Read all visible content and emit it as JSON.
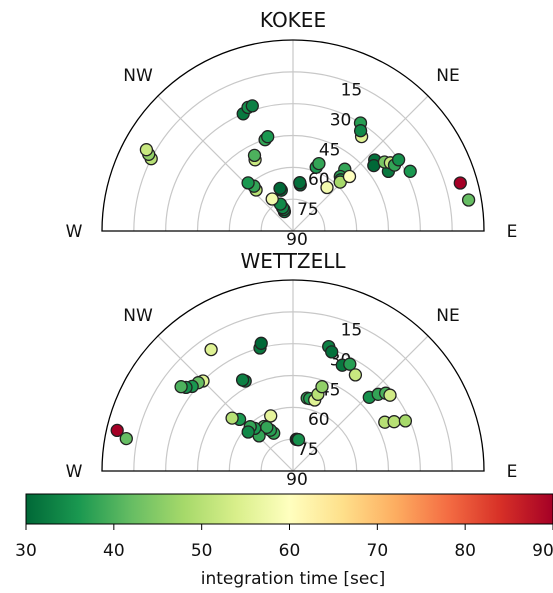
{
  "chart_data": [
    {
      "type": "scatter",
      "projection": "polar-half",
      "title": "KOKEE",
      "theta_range_deg": [
        -90,
        90
      ],
      "r_range": [
        0,
        90
      ],
      "grid": true,
      "radial_ticks": [
        "15",
        "30",
        "45",
        "60",
        "75",
        "90"
      ],
      "direction_labels": {
        "w": "W",
        "nw": "NW",
        "ne": "NE",
        "e": "E"
      },
      "points": [
        {
          "azimuth": -24,
          "elevation": 80,
          "value": 33
        },
        {
          "azimuth": -23,
          "elevation": 79,
          "value": 33
        },
        {
          "azimuth": -24,
          "elevation": 78,
          "value": 34
        },
        {
          "azimuth": -25,
          "elevation": 76,
          "value": 34
        },
        {
          "azimuth": -33,
          "elevation": 72,
          "value": 58
        },
        {
          "azimuth": -16,
          "elevation": 70,
          "value": 31
        },
        {
          "azimuth": -17,
          "elevation": 69,
          "value": 30
        },
        {
          "azimuth": 9,
          "elevation": 68,
          "value": 30
        },
        {
          "azimuth": 8,
          "elevation": 67,
          "value": 31
        },
        {
          "azimuth": 20,
          "elevation": 58,
          "value": 36
        },
        {
          "azimuth": 21,
          "elevation": 56,
          "value": 38
        },
        {
          "azimuth": -42,
          "elevation": 64,
          "value": 50
        },
        {
          "azimuth": -41,
          "elevation": 62,
          "value": 38
        },
        {
          "azimuth": -43,
          "elevation": 59,
          "value": 36
        },
        {
          "azimuth": -28,
          "elevation": 52,
          "value": 52
        },
        {
          "azimuth": -27,
          "elevation": 50,
          "value": 40
        },
        {
          "azimuth": -17,
          "elevation": 45,
          "value": 38
        },
        {
          "azimuth": -15,
          "elevation": 44,
          "value": 36
        },
        {
          "azimuth": -23,
          "elevation": 30,
          "value": 32
        },
        {
          "azimuth": -20,
          "elevation": 28,
          "value": 35
        },
        {
          "azimuth": -18,
          "elevation": 28,
          "value": 33
        },
        {
          "azimuth": 38,
          "elevation": 64,
          "value": 58
        },
        {
          "azimuth": 36,
          "elevation": 35,
          "value": 55
        },
        {
          "azimuth": 32,
          "elevation": 30,
          "value": 37
        },
        {
          "azimuth": 34,
          "elevation": 33,
          "value": 34
        },
        {
          "azimuth": 40,
          "elevation": 52,
          "value": 38
        },
        {
          "azimuth": 41,
          "elevation": 56,
          "value": 37
        },
        {
          "azimuth": 43,
          "elevation": 57,
          "value": 35
        },
        {
          "azimuth": 44,
          "elevation": 58,
          "value": 48
        },
        {
          "azimuth": 46,
          "elevation": 53,
          "value": 60
        },
        {
          "azimuth": 49,
          "elevation": 39,
          "value": 31
        },
        {
          "azimuth": 51,
          "elevation": 41,
          "value": 30
        },
        {
          "azimuth": 58,
          "elevation": 37,
          "value": 32
        },
        {
          "azimuth": 53,
          "elevation": 36,
          "value": 44
        },
        {
          "azimuth": 55,
          "elevation": 34,
          "value": 52
        },
        {
          "azimuth": 57,
          "elevation": 33,
          "value": 38
        },
        {
          "azimuth": 56,
          "elevation": 30,
          "value": 35
        },
        {
          "azimuth": 63,
          "elevation": 28,
          "value": 36
        },
        {
          "azimuth": -63,
          "elevation": 15,
          "value": 50
        },
        {
          "azimuth": -62,
          "elevation": 13,
          "value": 46
        },
        {
          "azimuth": -61,
          "elevation": 11,
          "value": 52
        },
        {
          "azimuth": 74,
          "elevation": 8,
          "value": 90
        },
        {
          "azimuth": 80,
          "elevation": 6,
          "value": 42
        }
      ]
    },
    {
      "type": "scatter",
      "projection": "polar-half",
      "title": "WETTZELL",
      "theta_range_deg": [
        -90,
        90
      ],
      "r_range": [
        0,
        90
      ],
      "grid": true,
      "radial_ticks": [
        "15",
        "30",
        "45",
        "60",
        "75",
        "90"
      ],
      "direction_labels": {
        "w": "W",
        "nw": "NW",
        "ne": "NE",
        "e": "E"
      },
      "points": [
        {
          "azimuth": 6,
          "elevation": 75,
          "value": 36
        },
        {
          "azimuth": 8,
          "elevation": 75,
          "value": 37
        },
        {
          "azimuth": 10,
          "elevation": 75,
          "value": 35
        },
        {
          "azimuth": -33,
          "elevation": 65,
          "value": 40
        },
        {
          "azimuth": -27,
          "elevation": 70,
          "value": 38
        },
        {
          "azimuth": -29,
          "elevation": 68,
          "value": 37
        },
        {
          "azimuth": -31,
          "elevation": 66,
          "value": 38
        },
        {
          "azimuth": -22,
          "elevation": 62,
          "value": 56
        },
        {
          "azimuth": -44,
          "elevation": 67,
          "value": 38
        },
        {
          "azimuth": -42,
          "elevation": 63,
          "value": 36
        },
        {
          "azimuth": -44,
          "elevation": 61,
          "value": 38
        },
        {
          "azimuth": -49,
          "elevation": 62,
          "value": 34
        },
        {
          "azimuth": -46,
          "elevation": 55,
          "value": 36
        },
        {
          "azimuth": -49,
          "elevation": 52,
          "value": 50
        },
        {
          "azimuth": 11,
          "elevation": 55,
          "value": 38
        },
        {
          "azimuth": 13,
          "elevation": 55,
          "value": 37
        },
        {
          "azimuth": 17,
          "elevation": 55,
          "value": 55
        },
        {
          "azimuth": 18,
          "elevation": 52,
          "value": 50
        },
        {
          "azimuth": 19,
          "elevation": 48,
          "value": 46
        },
        {
          "azimuth": -28,
          "elevation": 42,
          "value": 34
        },
        {
          "azimuth": -29,
          "elevation": 41,
          "value": 33
        },
        {
          "azimuth": -15,
          "elevation": 30,
          "value": 32
        },
        {
          "azimuth": -14,
          "elevation": 28,
          "value": 30
        },
        {
          "azimuth": 16,
          "elevation": 29,
          "value": 33
        },
        {
          "azimuth": 18,
          "elevation": 31,
          "value": 31
        },
        {
          "azimuth": 25,
          "elevation": 35,
          "value": 32
        },
        {
          "azimuth": 28,
          "elevation": 33,
          "value": 37
        },
        {
          "azimuth": 33,
          "elevation": 36,
          "value": 52
        },
        {
          "azimuth": -45,
          "elevation": 30,
          "value": 55
        },
        {
          "azimuth": -47,
          "elevation": 29,
          "value": 42
        },
        {
          "azimuth": -50,
          "elevation": 28,
          "value": 36
        },
        {
          "azimuth": -52,
          "elevation": 26,
          "value": 35
        },
        {
          "azimuth": -53,
          "elevation": 24,
          "value": 40
        },
        {
          "azimuth": -34,
          "elevation": 21,
          "value": 55
        },
        {
          "azimuth": 46,
          "elevation": 40,
          "value": 35
        },
        {
          "azimuth": 48,
          "elevation": 36,
          "value": 38
        },
        {
          "azimuth": 50,
          "elevation": 33,
          "value": 40
        },
        {
          "azimuth": 52,
          "elevation": 32,
          "value": 53
        },
        {
          "azimuth": 62,
          "elevation": 41,
          "value": 50
        },
        {
          "azimuth": 64,
          "elevation": 37,
          "value": 50
        },
        {
          "azimuth": 66,
          "elevation": 32,
          "value": 48
        },
        {
          "azimuth": -79,
          "elevation": 10,
          "value": 42
        },
        {
          "azimuth": -77,
          "elevation": 5,
          "value": 90
        }
      ]
    }
  ],
  "colorbar": {
    "label": "integration time [sec]",
    "min": 30,
    "max": 90,
    "tick_labels": [
      "30",
      "40",
      "50",
      "60",
      "70",
      "80",
      "90"
    ],
    "colormap": "RdYlGn_r",
    "stops": [
      "#006837",
      "#1a9850",
      "#66bd63",
      "#a6d96a",
      "#d9ef8b",
      "#ffffbf",
      "#fee08b",
      "#fdae61",
      "#f46d43",
      "#d73027",
      "#a50026"
    ]
  }
}
